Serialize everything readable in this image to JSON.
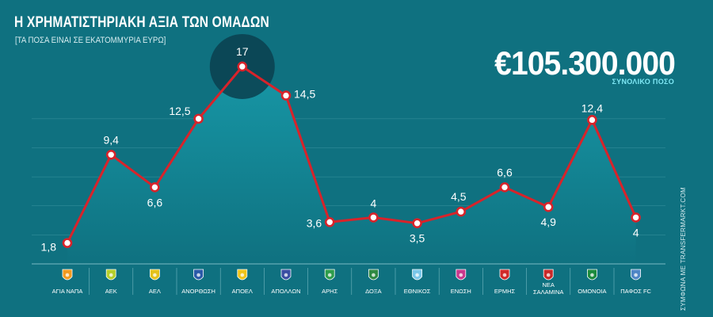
{
  "header": {
    "title": "Η ΧΡΗΜΑΤΙΣΤΗΡΙΑΚΗ ΑΞΙΑ ΤΩΝ ΟΜΑΔΩΝ",
    "subtitle": "[ΤΑ ΠΟΣΑ ΕΙΝΑΙ ΣΕ ΕΚΑΤΟΜΜΥΡΙΑ ΕΥΡΩ]",
    "total_value": "€105.300.000",
    "total_label": "ΣΥΝΟΛΙΚΟ ΠΟΣΟ",
    "source": "ΣΥΜΦΩΝΑ ΜΕ TRANSFERMARKT.COM"
  },
  "colors": {
    "background": "#0f7180",
    "line": "#d8232a",
    "area_top": "#1797a6",
    "area_bottom": "#0f7180",
    "highlight": "#0b3f4f",
    "text": "#ffffff",
    "accent": "#7fe8f5"
  },
  "chart_data": {
    "type": "line",
    "title": "Η ΧΡΗΜΑΤΙΣΤΗΡΙΑΚΗ ΑΞΙΑ ΤΩΝ ΟΜΑΔΩΝ",
    "xlabel": "",
    "ylabel": "",
    "ylim": [
      0,
      20
    ],
    "grid": true,
    "legend": "none",
    "highlight_index": 4,
    "categories": [
      "ΑΓΙΑ ΝΑΠΑ",
      "ΑΕΚ",
      "ΑΕΛ",
      "ΑΝΟΡΘΩΣΗ",
      "ΑΠΟΕΛ",
      "ΑΠΟΛΛΩΝ",
      "ΑΡΗΣ",
      "ΔΟΞΑ",
      "ΕΘΝΙΚΟΣ",
      "ΕΝΩΣΗ",
      "ΕΡΜΗΣ",
      "ΝΕΑ ΣΑΛΑΜΙΝΑ",
      "ΟΜΟΝΟΙΑ",
      "ΠΑΦΟΣ FC"
    ],
    "values": [
      1.8,
      9.4,
      6.6,
      12.5,
      17,
      14.5,
      3.6,
      4,
      3.5,
      4.5,
      6.6,
      4.9,
      12.4,
      4
    ],
    "value_labels": [
      "1,8",
      "9,4",
      "6,6",
      "12,5",
      "17",
      "14,5",
      "3,6",
      "4",
      "3,5",
      "4,5",
      "6,6",
      "4,9",
      "12,4",
      "4"
    ],
    "team_icons": [
      {
        "name": "agia-napa-crest-icon",
        "color": "#f39a1f"
      },
      {
        "name": "aek-crest-icon",
        "color": "#b5cf2a"
      },
      {
        "name": "ael-crest-icon",
        "color": "#e4c21b"
      },
      {
        "name": "anorthosis-crest-icon",
        "color": "#2b5aa8"
      },
      {
        "name": "apoel-crest-icon",
        "color": "#f2c51a"
      },
      {
        "name": "apollon-crest-icon",
        "color": "#3b4ea3"
      },
      {
        "name": "aris-crest-icon",
        "color": "#2e9d4c"
      },
      {
        "name": "doxa-crest-icon",
        "color": "#2f8a43"
      },
      {
        "name": "ethnikos-crest-icon",
        "color": "#7ac7ea"
      },
      {
        "name": "enosi-crest-icon",
        "color": "#c8388d"
      },
      {
        "name": "ermis-crest-icon",
        "color": "#d12a2a"
      },
      {
        "name": "nea-salamina-crest-icon",
        "color": "#c92a2a"
      },
      {
        "name": "omonoia-crest-icon",
        "color": "#1c8b3d"
      },
      {
        "name": "pafos-crest-icon",
        "color": "#4f86c6"
      }
    ]
  }
}
